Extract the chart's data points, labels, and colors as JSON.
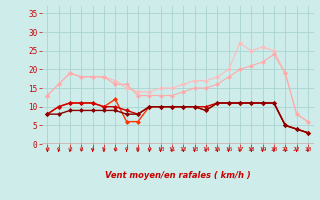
{
  "x": [
    0,
    1,
    2,
    3,
    4,
    5,
    6,
    7,
    8,
    9,
    10,
    11,
    12,
    13,
    14,
    15,
    16,
    17,
    18,
    19,
    20,
    21,
    22,
    23
  ],
  "line1": [
    13,
    16,
    19,
    18,
    18,
    18,
    17,
    15,
    14,
    14,
    15,
    15,
    16,
    17,
    17,
    18,
    20,
    27,
    25,
    26,
    25,
    19,
    8,
    6
  ],
  "line2": [
    13,
    16,
    19,
    18,
    18,
    18,
    16,
    16,
    13,
    13,
    13,
    13,
    14,
    15,
    15,
    16,
    18,
    20,
    21,
    22,
    24,
    19,
    8,
    6
  ],
  "line3": [
    8,
    10,
    11,
    11,
    11,
    10,
    12,
    6,
    6,
    10,
    10,
    10,
    10,
    10,
    9,
    11,
    11,
    11,
    11,
    11,
    11,
    5,
    4,
    3
  ],
  "line4": [
    8,
    10,
    11,
    11,
    11,
    10,
    10,
    9,
    8,
    10,
    10,
    10,
    10,
    10,
    10,
    11,
    11,
    11,
    11,
    11,
    11,
    5,
    4,
    3
  ],
  "line5": [
    8,
    8,
    9,
    9,
    9,
    9,
    9,
    8,
    8,
    10,
    10,
    10,
    10,
    10,
    9,
    11,
    11,
    11,
    11,
    11,
    11,
    5,
    4,
    3
  ],
  "bg_color": "#cdecea",
  "grid_color": "#aad4d1",
  "line1_color": "#ffbbbb",
  "line2_color": "#ffaaaa",
  "line3_color": "#ff3300",
  "line4_color": "#cc0000",
  "line5_color": "#880000",
  "tick_color": "#cc0000",
  "xlabel": "Vent moyen/en rafales ( km/h )",
  "arrow_color": "#cc0000",
  "yticks": [
    0,
    5,
    10,
    15,
    20,
    25,
    30,
    35
  ],
  "ylim": [
    0,
    37
  ],
  "xlim": [
    -0.5,
    23.5
  ]
}
